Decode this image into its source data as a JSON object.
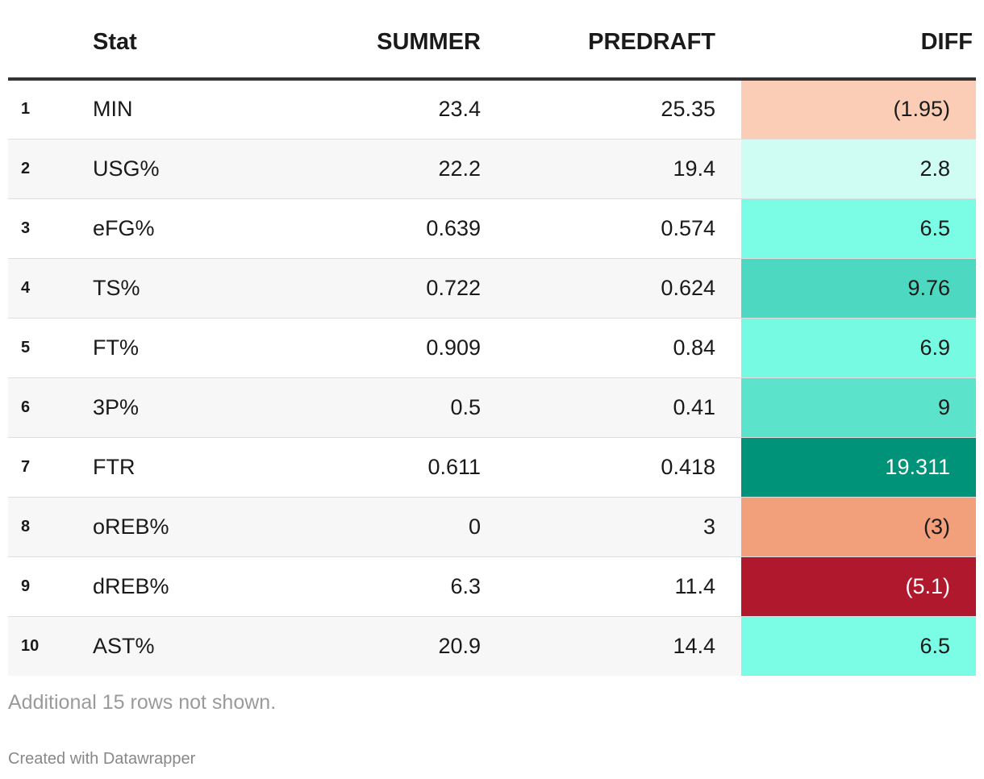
{
  "chart_data": {
    "type": "table",
    "columns": [
      "Stat",
      "SUMMER",
      "PREDRAFT",
      "DIFF"
    ],
    "rows": [
      {
        "n": "1",
        "stat": "MIN",
        "summer": "23.4",
        "predraft": "25.35",
        "diff": "(1.95)",
        "diff_value": -1.95,
        "diff_color": "#fbcdb6",
        "diff_text_color": "#1a1a1a"
      },
      {
        "n": "2",
        "stat": "USG%",
        "summer": "22.2",
        "predraft": "19.4",
        "diff": "2.8",
        "diff_value": 2.8,
        "diff_color": "#cffdf4",
        "diff_text_color": "#1a1a1a"
      },
      {
        "n": "3",
        "stat": "eFG%",
        "summer": "0.639",
        "predraft": "0.574",
        "diff": "6.5",
        "diff_value": 6.5,
        "diff_color": "#7bfce5",
        "diff_text_color": "#1a1a1a"
      },
      {
        "n": "4",
        "stat": "TS%",
        "summer": "0.722",
        "predraft": "0.624",
        "diff": "9.76",
        "diff_value": 9.76,
        "diff_color": "#4dd9c1",
        "diff_text_color": "#1a1a1a"
      },
      {
        "n": "5",
        "stat": "FT%",
        "summer": "0.909",
        "predraft": "0.84",
        "diff": "6.9",
        "diff_value": 6.9,
        "diff_color": "#76fae2",
        "diff_text_color": "#1a1a1a"
      },
      {
        "n": "6",
        "stat": "3P%",
        "summer": "0.5",
        "predraft": "0.41",
        "diff": "9",
        "diff_value": 9,
        "diff_color": "#5ce3cc",
        "diff_text_color": "#1a1a1a"
      },
      {
        "n": "7",
        "stat": "FTR",
        "summer": "0.611",
        "predraft": "0.418",
        "diff": "19.311",
        "diff_value": 19.311,
        "diff_color": "#009379",
        "diff_text_color": "#ffffff"
      },
      {
        "n": "8",
        "stat": "oREB%",
        "summer": "0",
        "predraft": "3",
        "diff": "(3)",
        "diff_value": -3,
        "diff_color": "#f29f7b",
        "diff_text_color": "#1a1a1a"
      },
      {
        "n": "9",
        "stat": "dREB%",
        "summer": "6.3",
        "predraft": "11.4",
        "diff": "(5.1)",
        "diff_value": -5.1,
        "diff_color": "#b0182d",
        "diff_text_color": "#ffffff"
      },
      {
        "n": "10",
        "stat": "AST%",
        "summer": "20.9",
        "predraft": "14.4",
        "diff": "6.5",
        "diff_value": 6.5,
        "diff_color": "#7bfce5",
        "diff_text_color": "#1a1a1a"
      }
    ]
  },
  "footer": {
    "note": "Additional 15 rows not shown.",
    "credit": "Created with Datawrapper"
  }
}
